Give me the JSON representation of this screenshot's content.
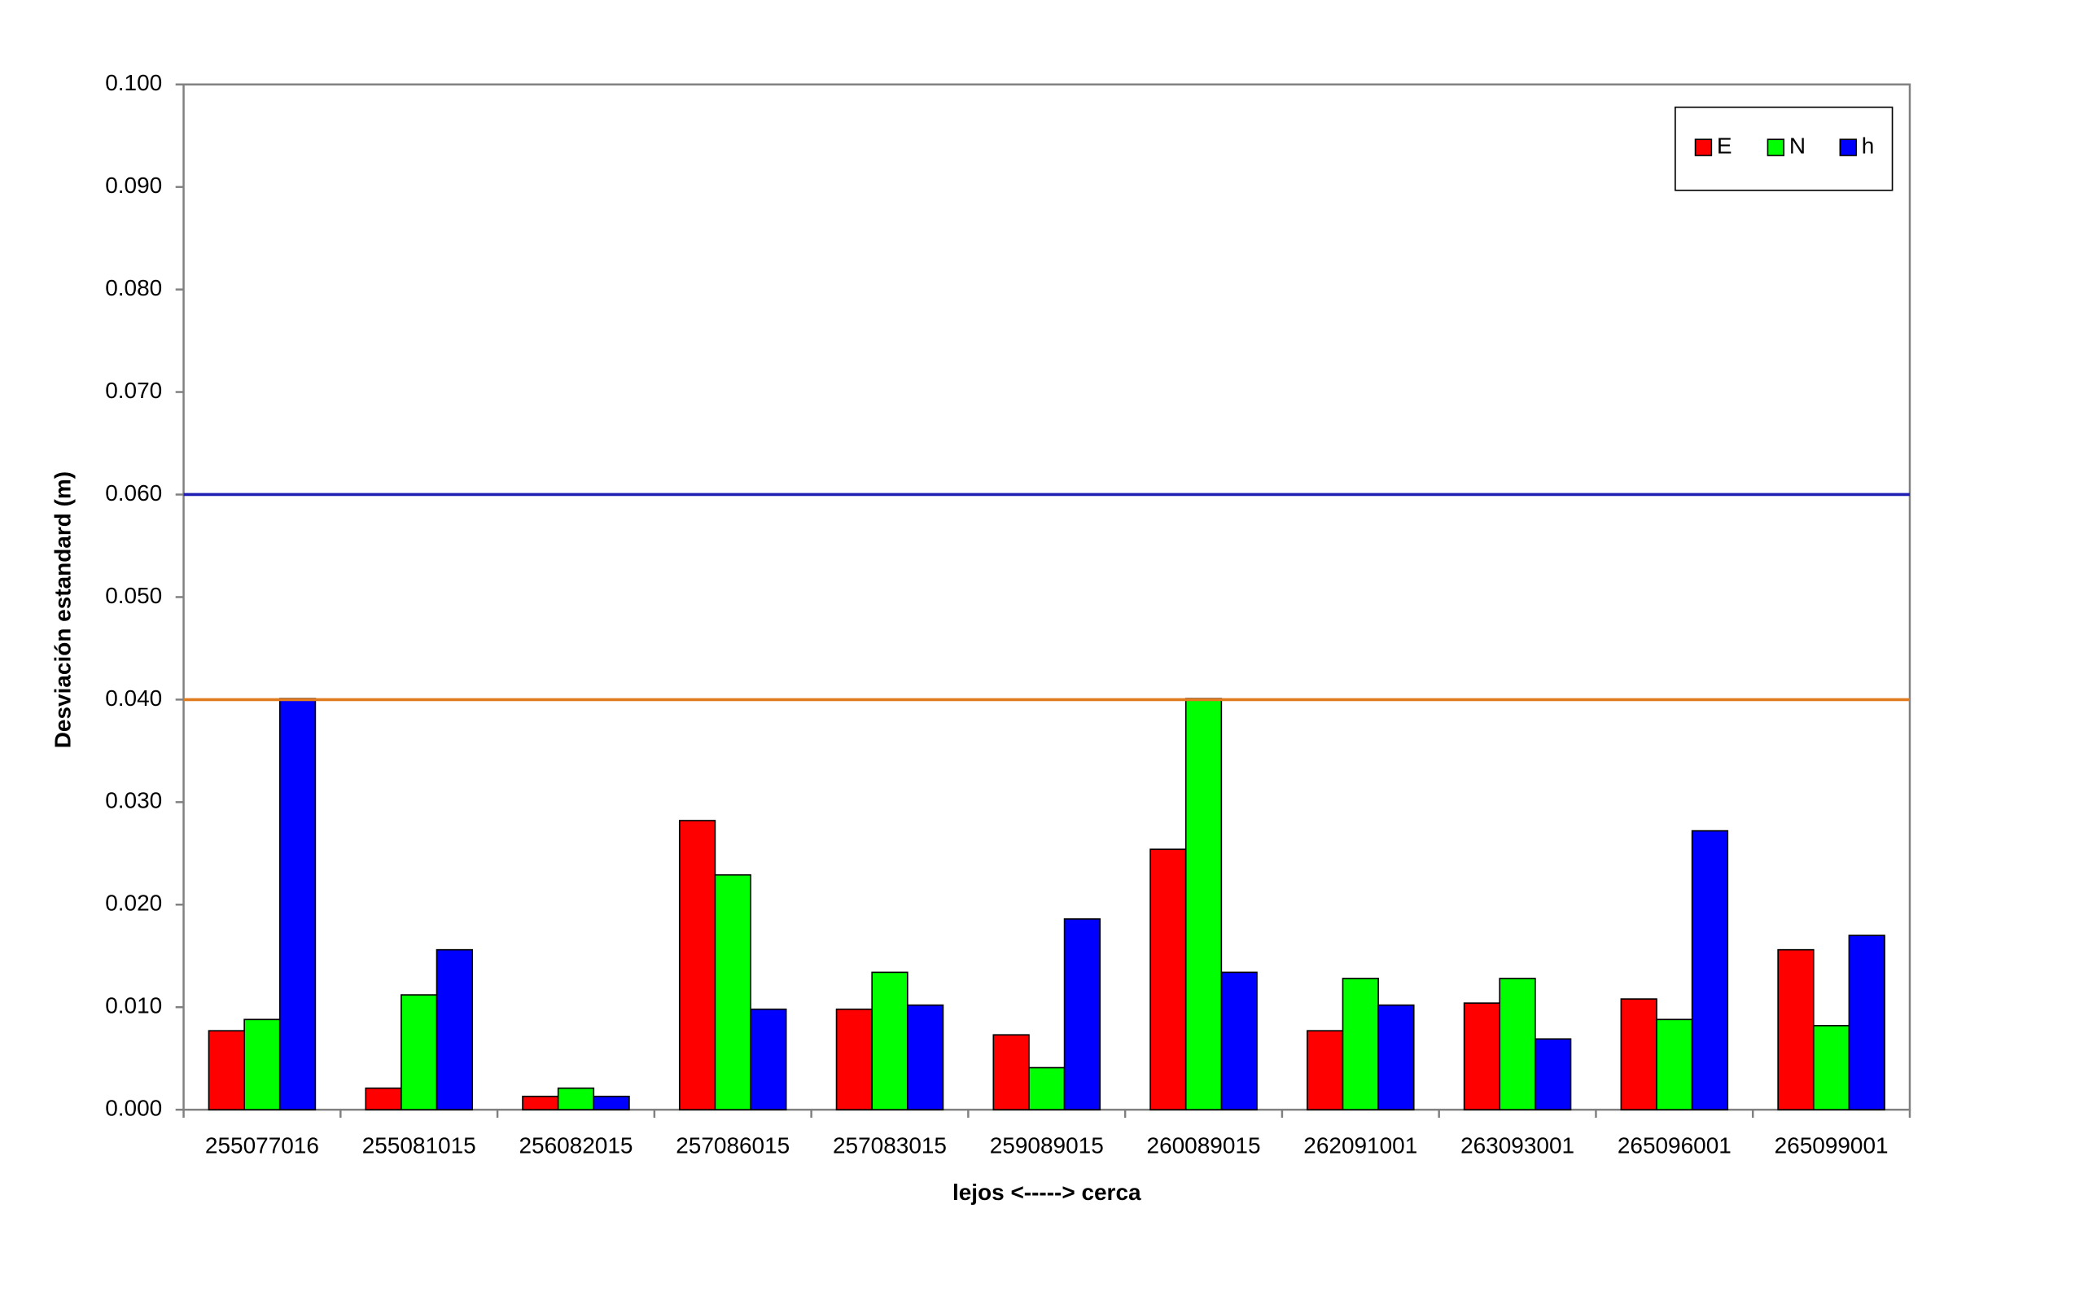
{
  "chart_data": {
    "type": "bar",
    "x_label": "lejos <-----> cerca",
    "y_label": "Desviación estandard (m)",
    "categories": [
      "255077016",
      "255081015",
      "256082015",
      "257086015",
      "257083015",
      "259089015",
      "260089015",
      "262091001",
      "263093001",
      "265096001",
      "265099001"
    ],
    "series": [
      {
        "name": "E",
        "color": "#ff0000",
        "values": [
          0.0077,
          0.0021,
          0.0013,
          0.0282,
          0.0098,
          0.0073,
          0.0254,
          0.0077,
          0.0104,
          0.0108,
          0.0156
        ]
      },
      {
        "name": "N",
        "color": "#00ff00",
        "values": [
          0.0088,
          0.0112,
          0.0021,
          0.0229,
          0.0134,
          0.0041,
          0.0401,
          0.0128,
          0.0128,
          0.0088,
          0.0082
        ]
      },
      {
        "name": "h",
        "color": "#0000ff",
        "values": [
          0.0401,
          0.0156,
          0.0013,
          0.0098,
          0.0102,
          0.0186,
          0.0134,
          0.0102,
          0.0069,
          0.0272,
          0.017
        ]
      }
    ],
    "reference_lines": [
      {
        "value": 0.06,
        "color": "#1f1fb4"
      },
      {
        "value": 0.04,
        "color": "#e07b20"
      }
    ],
    "ylim": [
      0,
      0.1
    ],
    "yticks": [
      {
        "value": 0,
        "label": "0.000"
      },
      {
        "value": 0.01,
        "label": "0.010"
      },
      {
        "value": 0.02,
        "label": "0.020"
      },
      {
        "value": 0.03,
        "label": "0.030"
      },
      {
        "value": 0.04,
        "label": "0.040"
      },
      {
        "value": 0.05,
        "label": "0.050"
      },
      {
        "value": 0.06,
        "label": "0.060"
      },
      {
        "value": 0.07,
        "label": "0.070"
      },
      {
        "value": 0.08,
        "label": "0.080"
      },
      {
        "value": 0.09,
        "label": "0.090"
      },
      {
        "value": 0.1,
        "label": "0.100"
      }
    ],
    "grid": false,
    "legend": "top-right"
  }
}
